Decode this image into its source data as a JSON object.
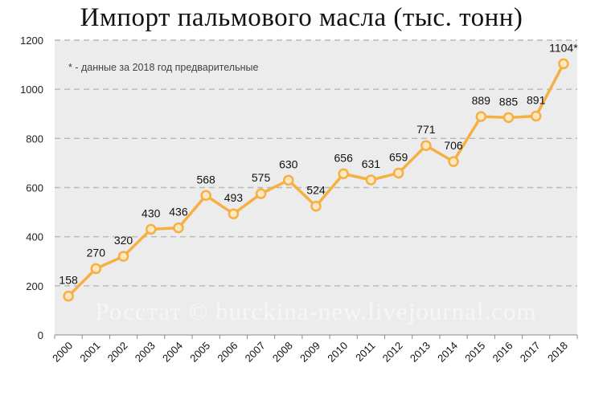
{
  "colors": {
    "plot_bg": "#ececec",
    "line": "#f5b041",
    "marker_fill": "#fde8c3",
    "gridline": "#b8b8b8",
    "axis": "#888888"
  },
  "chart_data": {
    "type": "line",
    "title": "Импорт пальмового масла (тыс. тонн)",
    "note": "* - данные за 2018 год предварительные",
    "watermark": "Росстат © burckina-new.livejournal.com",
    "x": [
      "2000",
      "2001",
      "2002",
      "2003",
      "2004",
      "2005",
      "2006",
      "2007",
      "2008",
      "2009",
      "2010",
      "2011",
      "2012",
      "2013",
      "2014",
      "2015",
      "2016",
      "2017",
      "2018"
    ],
    "values": [
      158,
      270,
      320,
      430,
      436,
      568,
      493,
      575,
      630,
      524,
      656,
      631,
      659,
      771,
      706,
      889,
      885,
      891,
      1104
    ],
    "data_labels": [
      "158",
      "270",
      "320",
      "430",
      "436",
      "568",
      "493",
      "575",
      "630",
      "524",
      "656",
      "631",
      "659",
      "771",
      "706",
      "889",
      "885",
      "891",
      "1104*"
    ],
    "y_ticks": [
      "0",
      "200",
      "400",
      "600",
      "800",
      "1000",
      "1200"
    ],
    "ylim": [
      0,
      1200
    ],
    "grid": "horizontal dashed",
    "legend": "none"
  }
}
